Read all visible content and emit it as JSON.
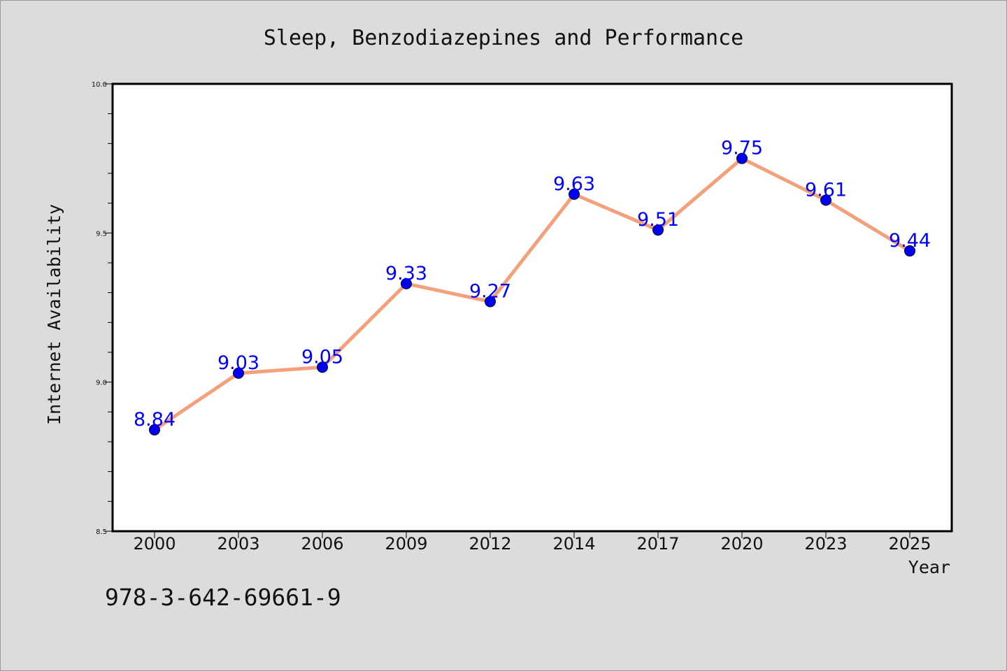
{
  "chart_data": {
    "type": "line",
    "title": "Sleep, Benzodiazepines and Performance",
    "xlabel": "Year",
    "ylabel": "Internet Availability",
    "categories": [
      "2000",
      "2003",
      "2006",
      "2009",
      "2012",
      "2014",
      "2017",
      "2020",
      "2023",
      "2025"
    ],
    "series": [
      {
        "values": [
          8.84,
          9.03,
          9.05,
          9.33,
          9.27,
          9.63,
          9.51,
          9.75,
          9.61,
          9.44
        ],
        "labels": [
          "8.84",
          "9.03",
          "9.05",
          "9.33",
          "9.27",
          "9.63",
          "9.51",
          "9.75",
          "9.61",
          "9.44"
        ],
        "line_color": "#f4a07a",
        "marker_color": "#0000ee",
        "label_color": "#0000ff"
      }
    ],
    "ylim": [
      8.5,
      10.0
    ],
    "yticks": [
      "8.5",
      "9.0",
      "9.5",
      "10.0"
    ],
    "grid": false,
    "legend": "none"
  },
  "footer": {
    "isbn": "978-3-642-69661-9"
  },
  "colors": {
    "background": "#dcdcdc",
    "plot_background": "#ffffff",
    "axes": "#000000"
  }
}
